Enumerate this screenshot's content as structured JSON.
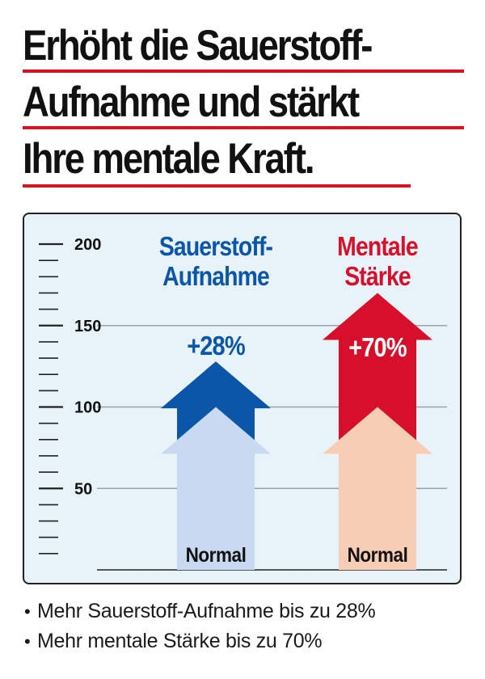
{
  "headline": {
    "lines": [
      "Erhöht die Sauerstoff-",
      "Aufnahme und stärkt",
      "Ihre mentale Kraft."
    ]
  },
  "colors": {
    "accent_red": "#d8121f",
    "blue": "#0b56a6",
    "blue_light": "#c9d9f1",
    "red": "#d60f2a",
    "red_light": "#f7cdb6",
    "panel_bg": "#e7f2f9"
  },
  "chart_data": {
    "type": "bar",
    "ylim": [
      0,
      200
    ],
    "y_ticks": [
      50,
      100,
      150,
      200
    ],
    "y_tick_labels": [
      "50",
      "100",
      "150",
      "200"
    ],
    "grid": true,
    "baseline_value": 100,
    "baseline_label": "Normal",
    "categories": [
      {
        "label_lines": [
          "Sauerstoff-",
          "Aufnahme"
        ],
        "value": 128,
        "change_label": "+28%",
        "color": "#0b56a6",
        "normal_color": "#c9d9f1"
      },
      {
        "label_lines": [
          "Mentale",
          "Stärke"
        ],
        "value": 170,
        "change_label": "+70%",
        "color": "#d60f2a",
        "normal_color": "#f7cdb6"
      }
    ]
  },
  "bullets": [
    "Mehr Sauerstoff-Aufnahme bis zu 28%",
    "Mehr mentale Stärke bis zu 70%"
  ],
  "bullet_symbol": "•"
}
